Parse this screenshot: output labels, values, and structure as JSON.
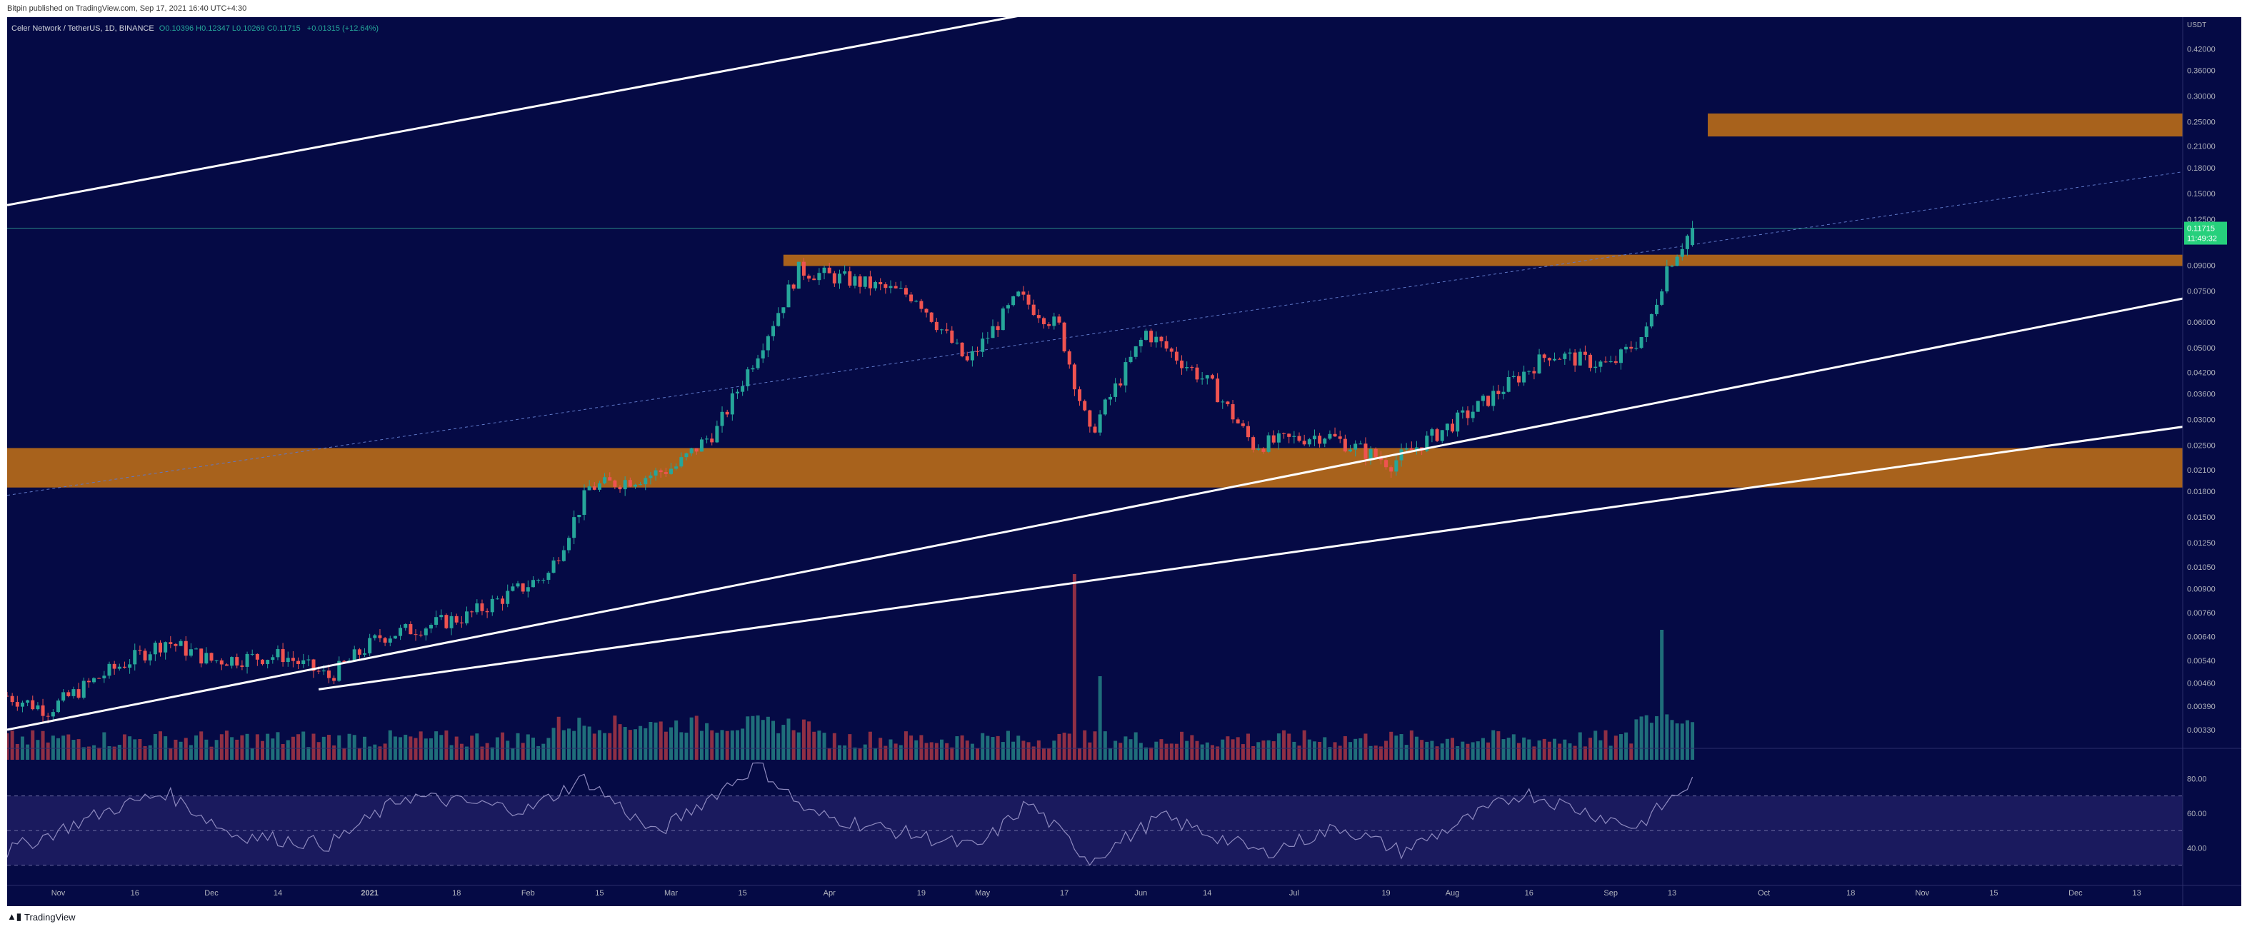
{
  "publisher": "Bitpin published on TradingView.com, Sep 17, 2021 16:40 UTC+4:30",
  "header": {
    "symbol": "Celer Network / TetherUS, 1D, BINANCE",
    "ohlc": "O0.10396 H0.12347 L0.10269 C0.11715",
    "change": "+0.01315 (+12.64%)"
  },
  "footer": {
    "brand": "TradingView",
    "logo_icon": "tradingview-logo-icon"
  },
  "colors": {
    "background": "#050a45",
    "up": "#26a69a",
    "down": "#ef5350",
    "volume_up": "#1f6e7a",
    "volume_down": "#8f2f45",
    "zone": "#a8621c",
    "trendline": "#ffffff",
    "price_badge": "#26d07c",
    "rsi_line": "#8e8abf",
    "rsi_band": "#1a1a5e"
  },
  "chart_data": [
    {
      "type": "candlestick",
      "price_axis": {
        "scale": "log",
        "unit_label": "USDT",
        "ticks": [
          "0.42000",
          "0.36000",
          "0.30000",
          "0.25000",
          "0.21000",
          "0.18000",
          "0.15000",
          "0.12500",
          "0.09000",
          "0.07500",
          "0.06000",
          "0.05000",
          "0.04200",
          "0.03600",
          "0.03000",
          "0.02500",
          "0.02100",
          "0.01800",
          "0.01500",
          "0.01250",
          "0.01050",
          "0.00900",
          "0.00760",
          "0.00640",
          "0.00540",
          "0.00460",
          "0.00390",
          "0.00330"
        ],
        "current_price": "0.11715",
        "countdown": "11:49:32"
      },
      "x_axis": {
        "start": "2020-10-22",
        "end": "2021-12-22",
        "labels": [
          {
            "text": "Nov",
            "date": "2020-11-01"
          },
          {
            "text": "16",
            "date": "2020-11-16"
          },
          {
            "text": "Dec",
            "date": "2020-12-01"
          },
          {
            "text": "14",
            "date": "2020-12-14"
          },
          {
            "text": "2021",
            "date": "2021-01-01"
          },
          {
            "text": "18",
            "date": "2021-01-18"
          },
          {
            "text": "Feb",
            "date": "2021-02-01"
          },
          {
            "text": "15",
            "date": "2021-02-15"
          },
          {
            "text": "Mar",
            "date": "2021-03-01"
          },
          {
            "text": "15",
            "date": "2021-03-15"
          },
          {
            "text": "Apr",
            "date": "2021-04-01"
          },
          {
            "text": "19",
            "date": "2021-04-19"
          },
          {
            "text": "May",
            "date": "2021-05-01"
          },
          {
            "text": "17",
            "date": "2021-05-17"
          },
          {
            "text": "Jun",
            "date": "2021-06-01"
          },
          {
            "text": "14",
            "date": "2021-06-14"
          },
          {
            "text": "Jul",
            "date": "2021-07-01"
          },
          {
            "text": "19",
            "date": "2021-07-19"
          },
          {
            "text": "Aug",
            "date": "2021-08-01"
          },
          {
            "text": "16",
            "date": "2021-08-16"
          },
          {
            "text": "Sep",
            "date": "2021-09-01"
          },
          {
            "text": "13",
            "date": "2021-09-13"
          },
          {
            "text": "Oct",
            "date": "2021-10-01"
          },
          {
            "text": "18",
            "date": "2021-10-18"
          },
          {
            "text": "Nov",
            "date": "2021-11-01"
          },
          {
            "text": "15",
            "date": "2021-11-15"
          },
          {
            "text": "Dec",
            "date": "2021-12-01"
          },
          {
            "text": "13",
            "date": "2021-12-13"
          }
        ]
      },
      "price_path": [
        {
          "date": "2020-10-22",
          "price": 0.0042
        },
        {
          "date": "2020-10-30",
          "price": 0.0038
        },
        {
          "date": "2020-11-10",
          "price": 0.0049
        },
        {
          "date": "2020-11-22",
          "price": 0.0062
        },
        {
          "date": "2020-12-01",
          "price": 0.0054
        },
        {
          "date": "2020-12-15",
          "price": 0.0056
        },
        {
          "date": "2020-12-24",
          "price": 0.0048
        },
        {
          "date": "2021-01-03",
          "price": 0.0064
        },
        {
          "date": "2021-01-20",
          "price": 0.0074
        },
        {
          "date": "2021-02-05",
          "price": 0.01
        },
        {
          "date": "2021-02-13",
          "price": 0.0185
        },
        {
          "date": "2021-02-24",
          "price": 0.02
        },
        {
          "date": "2021-03-02",
          "price": 0.0215
        },
        {
          "date": "2021-03-10",
          "price": 0.028
        },
        {
          "date": "2021-03-20",
          "price": 0.056
        },
        {
          "date": "2021-03-26",
          "price": 0.087
        },
        {
          "date": "2021-04-05",
          "price": 0.081
        },
        {
          "date": "2021-04-18",
          "price": 0.072
        },
        {
          "date": "2021-04-28",
          "price": 0.045
        },
        {
          "date": "2021-05-08",
          "price": 0.072
        },
        {
          "date": "2021-05-16",
          "price": 0.058
        },
        {
          "date": "2021-05-22",
          "price": 0.027
        },
        {
          "date": "2021-06-02",
          "price": 0.056
        },
        {
          "date": "2021-06-15",
          "price": 0.038
        },
        {
          "date": "2021-06-23",
          "price": 0.025
        },
        {
          "date": "2021-07-07",
          "price": 0.027
        },
        {
          "date": "2021-07-20",
          "price": 0.022
        },
        {
          "date": "2021-08-05",
          "price": 0.032
        },
        {
          "date": "2021-08-20",
          "price": 0.048
        },
        {
          "date": "2021-09-01",
          "price": 0.044
        },
        {
          "date": "2021-09-08",
          "price": 0.056
        },
        {
          "date": "2021-09-12",
          "price": 0.089
        },
        {
          "date": "2021-09-17",
          "price": 0.117
        }
      ],
      "volume_spikes": [
        {
          "date": "2021-05-19",
          "value": 1.0
        },
        {
          "date": "2021-09-11",
          "value": 0.7
        },
        {
          "date": "2021-05-24",
          "value": 0.45
        }
      ],
      "annotations": {
        "zones": [
          {
            "name": "upper-resistance-zone",
            "from_date": "2021-09-20",
            "to_date": "2021-12-22",
            "low": 0.225,
            "high": 0.265
          },
          {
            "name": "breakout-zone",
            "from_date": "2021-03-23",
            "to_date": "2021-12-22",
            "low": 0.0895,
            "high": 0.097
          },
          {
            "name": "support-zone",
            "from_date": "2020-10-22",
            "to_date": "2021-12-22",
            "low": 0.0185,
            "high": 0.0245
          }
        ],
        "trendlines": [
          {
            "name": "channel-top-line",
            "from": {
              "date": "2020-10-22",
              "price": 0.138
            },
            "to": {
              "date": "2021-09-05",
              "price": 1.2
            }
          },
          {
            "name": "rising-support-line",
            "from": {
              "date": "2020-10-22",
              "price": 0.0033
            },
            "to": {
              "date": "2021-12-22",
              "price": 0.071
            }
          },
          {
            "name": "long-support-line",
            "from": {
              "date": "2020-12-22",
              "price": 0.0044
            },
            "to": {
              "date": "2021-12-22",
              "price": 0.0285
            }
          }
        ],
        "dotted_line": {
          "from": {
            "date": "2020-10-22",
            "price": 0.0175
          },
          "to": {
            "date": "2021-12-22",
            "price": 0.175
          }
        },
        "current_price_line": 0.11715
      }
    },
    {
      "type": "line",
      "name": "rsi",
      "y_ticks": [
        "80.00",
        "60.00",
        "40.00"
      ],
      "levels": [
        70,
        50,
        30
      ],
      "ylim": [
        20,
        95
      ],
      "path": [
        {
          "date": "2020-10-22",
          "value": 38
        },
        {
          "date": "2020-11-12",
          "value": 63
        },
        {
          "date": "2020-11-22",
          "value": 72
        },
        {
          "date": "2020-12-05",
          "value": 48
        },
        {
          "date": "2020-12-24",
          "value": 42
        },
        {
          "date": "2021-01-08",
          "value": 70
        },
        {
          "date": "2021-02-01",
          "value": 62
        },
        {
          "date": "2021-02-12",
          "value": 80
        },
        {
          "date": "2021-02-26",
          "value": 48
        },
        {
          "date": "2021-03-18",
          "value": 88
        },
        {
          "date": "2021-03-28",
          "value": 60
        },
        {
          "date": "2021-04-30",
          "value": 40
        },
        {
          "date": "2021-05-10",
          "value": 66
        },
        {
          "date": "2021-05-22",
          "value": 33
        },
        {
          "date": "2021-06-05",
          "value": 58
        },
        {
          "date": "2021-06-25",
          "value": 37
        },
        {
          "date": "2021-07-10",
          "value": 52
        },
        {
          "date": "2021-07-22",
          "value": 38
        },
        {
          "date": "2021-08-15",
          "value": 72
        },
        {
          "date": "2021-09-06",
          "value": 52
        },
        {
          "date": "2021-09-17",
          "value": 78
        }
      ]
    }
  ]
}
